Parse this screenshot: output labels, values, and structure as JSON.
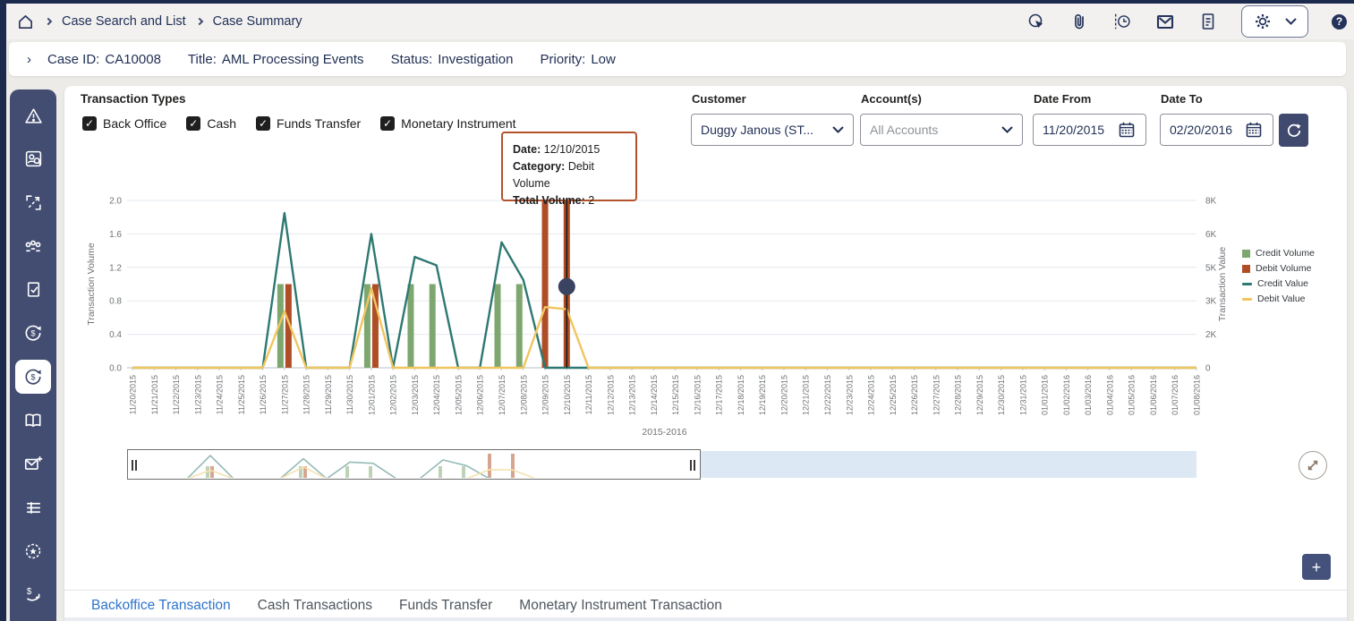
{
  "breadcrumb": {
    "items": [
      "Case Search and List",
      "Case Summary"
    ]
  },
  "header_icons": [
    "record-search-icon",
    "attachment-icon",
    "audit-history-icon",
    "email-icon",
    "document-icon",
    "settings-gear-icon",
    "chevron-down-icon",
    "help-icon"
  ],
  "case_bar": {
    "fields": [
      {
        "label": "Case ID:",
        "value": "CA10008"
      },
      {
        "label": "Title:",
        "value": "AML Processing Events"
      },
      {
        "label": "Status:",
        "value": "Investigation"
      },
      {
        "label": "Priority:",
        "value": "Low"
      }
    ]
  },
  "sidebar": {
    "icons": [
      "alert-triangle-icon",
      "person-search-icon",
      "link-export-icon",
      "entities-icon",
      "document-check-icon",
      "currency-cycle-icon",
      "currency-cycle-icon-active",
      "knowledge-book-icon",
      "email-add-icon",
      "table-list-icon",
      "badge-star-icon",
      "funds-transfer-icon"
    ],
    "active_index": 6
  },
  "transaction_types": {
    "title": "Transaction Types",
    "options": [
      {
        "label": "Back Office",
        "checked": true
      },
      {
        "label": "Cash",
        "checked": true
      },
      {
        "label": "Funds Transfer",
        "checked": true
      },
      {
        "label": "Monetary Instrument",
        "checked": true
      }
    ]
  },
  "filters": {
    "customer": {
      "label": "Customer",
      "value": "Duggy Janous (ST..."
    },
    "accounts": {
      "label": "Account(s)",
      "placeholder": "All Accounts"
    },
    "date_from": {
      "label": "Date From",
      "value": "11/20/2015"
    },
    "date_to": {
      "label": "Date To",
      "value": "02/20/2016"
    }
  },
  "tooltip": {
    "rows": [
      {
        "label": "Date:",
        "value": "12/10/2015"
      },
      {
        "label": "Category:",
        "value": "Debit Volume"
      },
      {
        "label": "Total Volume:",
        "value": "2"
      }
    ]
  },
  "chart_data": {
    "type": "combo",
    "xlabel": "2015-2016",
    "y_left": {
      "label": "Transaction Volume",
      "ticks": [
        0.0,
        0.4,
        0.8,
        1.2,
        1.6,
        2.0
      ],
      "max": 2.0
    },
    "y_right": {
      "label": "Transaction Value",
      "ticks": [
        "0",
        "2K",
        "3K",
        "5K",
        "6K",
        "8K"
      ],
      "max_k": 8
    },
    "categories": [
      "11/20/2015",
      "11/21/2015",
      "11/22/2015",
      "11/23/2015",
      "11/24/2015",
      "11/25/2015",
      "11/26/2015",
      "11/27/2015",
      "11/28/2015",
      "11/29/2015",
      "11/30/2015",
      "12/01/2015",
      "12/02/2015",
      "12/03/2015",
      "12/04/2015",
      "12/05/2015",
      "12/06/2015",
      "12/07/2015",
      "12/08/2015",
      "12/09/2015",
      "12/10/2015",
      "12/11/2015",
      "12/12/2015",
      "12/13/2015",
      "12/14/2015",
      "12/15/2015",
      "12/16/2015",
      "12/17/2015",
      "12/18/2015",
      "12/19/2015",
      "12/20/2015",
      "12/21/2015",
      "12/22/2015",
      "12/23/2015",
      "12/24/2015",
      "12/25/2015",
      "12/26/2015",
      "12/27/2015",
      "12/28/2015",
      "12/29/2015",
      "12/30/2015",
      "12/31/2015",
      "01/01/2016",
      "01/02/2016",
      "01/03/2016",
      "01/04/2016",
      "01/05/2016",
      "01/06/2016",
      "01/07/2016",
      "01/08/2016"
    ],
    "series": [
      {
        "name": "Credit Volume",
        "type": "bar",
        "axis": "left",
        "color": "#7EA770",
        "values": [
          0,
          0,
          0,
          0,
          0,
          0,
          0,
          1,
          0,
          0,
          0,
          1,
          0,
          1,
          1,
          0,
          0,
          1,
          1,
          0,
          0,
          0,
          0,
          0,
          0,
          0,
          0,
          0,
          0,
          0,
          0,
          0,
          0,
          0,
          0,
          0,
          0,
          0,
          0,
          0,
          0,
          0,
          0,
          0,
          0,
          0,
          0,
          0,
          0,
          0
        ]
      },
      {
        "name": "Debit Volume",
        "type": "bar",
        "axis": "left",
        "color": "#AE4D26",
        "values": [
          0,
          0,
          0,
          0,
          0,
          0,
          0,
          1,
          0,
          0,
          0,
          1,
          0,
          0,
          0,
          0,
          0,
          0,
          0,
          2,
          2,
          0,
          0,
          0,
          0,
          0,
          0,
          0,
          0,
          0,
          0,
          0,
          0,
          0,
          0,
          0,
          0,
          0,
          0,
          0,
          0,
          0,
          0,
          0,
          0,
          0,
          0,
          0,
          0,
          0
        ]
      },
      {
        "name": "Credit Value",
        "type": "line",
        "axis": "right",
        "color": "#2E7872",
        "values": [
          0,
          0,
          0,
          0,
          0,
          0,
          0,
          7.4,
          0,
          0,
          0,
          6.4,
          0,
          5.3,
          4.9,
          0,
          0,
          6,
          4.2,
          0,
          0,
          0,
          0,
          0,
          0,
          0,
          0,
          0,
          0,
          0,
          0,
          0,
          0,
          0,
          0,
          0,
          0,
          0,
          0,
          0,
          0,
          0,
          0,
          0,
          0,
          0,
          0,
          0,
          0,
          0
        ]
      },
      {
        "name": "Debit Value",
        "type": "line",
        "axis": "right",
        "color": "#F0C55F",
        "values": [
          0,
          0,
          0,
          0,
          0,
          0,
          0,
          2.7,
          0,
          0,
          0,
          3.8,
          0,
          0,
          0,
          0,
          0,
          0,
          0,
          2.9,
          2.8,
          0,
          0,
          0,
          0,
          0,
          0,
          0,
          0,
          0,
          0,
          0,
          0,
          0,
          0,
          0,
          0,
          0,
          0,
          0,
          0,
          0,
          0,
          0,
          0,
          0,
          0,
          0,
          0,
          0
        ]
      }
    ],
    "legend_position": "right",
    "grid": true,
    "selected_point": {
      "date": "12/10/2015",
      "series": "Debit Volume",
      "total_volume": 2,
      "marker_value": 0.97
    }
  },
  "tabs": {
    "items": [
      {
        "label": "Backoffice Transaction",
        "active": true
      },
      {
        "label": "Cash Transactions",
        "active": false
      },
      {
        "label": "Funds Transfer",
        "active": false
      },
      {
        "label": "Monetary Instrument Transaction",
        "active": false
      }
    ]
  },
  "buttons": {
    "add_label": "+"
  },
  "colors": {
    "frame_navy": "#1C2A4D",
    "sidebar_navy": "#424D71",
    "icon_navy": "#25335C",
    "credit_volume": "#7EA770",
    "debit_volume": "#AE4D26",
    "credit_value": "#2E7872",
    "debit_value": "#F0C55F",
    "tooltip_border": "#B3532C",
    "active_tab_blue": "#2E74C9",
    "brush_unselected": "#DCE8F4",
    "selection_marker": "#3A4462"
  }
}
